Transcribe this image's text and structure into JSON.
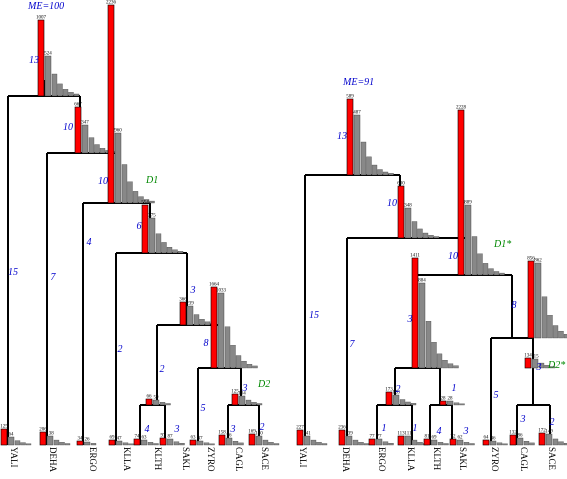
{
  "left_tree": {
    "me_label": "ME=100",
    "taxa": [
      "YALI",
      "DEHA",
      "ERGO",
      "KLLA",
      "KLTH",
      "SAKL",
      "ZYRO",
      "CAGL",
      "SACE"
    ],
    "branch_labels": {
      "root": "13",
      "yali": "15",
      "n1": "10",
      "deha": "7",
      "n2": "10",
      "ergo": "4",
      "n3": "6",
      "klla": "2",
      "n4": "3",
      "n5": "2",
      "kl_kt": "4",
      "sakl_leaf": "3",
      "n6": "8",
      "zyro": "5",
      "n7": "3",
      "cagl_leaf": "3",
      "sace_leaf": "2"
    },
    "node_tags": {
      "d1": "D1",
      "d2": "D2"
    },
    "histograms": {
      "root": {
        "red": "1007",
        "gray": "524"
      },
      "n1": {
        "red": "667",
        "gray": "347"
      },
      "n2": {
        "red": "2236",
        "gray": "960"
      },
      "n3": {
        "red": "554",
        "gray": "375"
      },
      "n4": {
        "red": "366",
        "gray": "239"
      },
      "n6": {
        "red": "1664",
        "gray": "1033"
      },
      "n7": {
        "red": "125",
        "gray": "104"
      },
      "n8": {
        "red": "66",
        "gray": "59"
      },
      "yali": {
        "red": "125",
        "gray": "64"
      },
      "deha": {
        "red": "206",
        "gray": "138"
      },
      "ergo": {
        "red": "34",
        "gray": "26"
      },
      "klla": {
        "red": "69",
        "gray": "47"
      },
      "klth": {
        "red": "74",
        "gray": "63"
      },
      "sakl": {
        "red": "97",
        "gray": "87"
      },
      "zyro": {
        "red": "63",
        "gray": "47"
      },
      "cagl": {
        "red": "158",
        "gray": "96"
      },
      "sace": {
        "red": "169",
        "gray": "140"
      }
    }
  },
  "right_tree": {
    "me_label": "ME=91",
    "taxa": [
      "YALI",
      "DEHA",
      "ERGO",
      "KLLA",
      "KLTH",
      "SAKL",
      "ZYRO",
      "CAGL",
      "SACE"
    ],
    "branch_labels": {
      "root": "13",
      "yali": "15",
      "n1": "10",
      "deha": "7",
      "n2": "10",
      "n3": "3",
      "n4": "8",
      "ergo_b": "2",
      "ergo_leaf": "1",
      "klla_leaf": "1",
      "n5": "1",
      "klth_leaf": "4",
      "sakl_leaf": "3",
      "zyro": "5",
      "n6": "3",
      "cagl_leaf": "3",
      "sace_leaf": "2"
    },
    "node_tags": {
      "d1": "D1*",
      "d2": "D2*"
    },
    "histograms": {
      "root": {
        "red": "589",
        "gray": "487"
      },
      "n1": {
        "red": "600",
        "gray": "348"
      },
      "n2": {
        "red": "2228",
        "gray": "889"
      },
      "n3": {
        "red": "1411",
        "gray": "884"
      },
      "n4": {
        "red": "856",
        "gray": "862"
      },
      "ek": {
        "red": "173",
        "gray": "128"
      },
      "n5": {
        "red": "28",
        "gray": "28"
      },
      "n6": {
        "red": "134",
        "gray": "115"
      },
      "yali": {
        "red": "227",
        "gray": "141"
      },
      "deha": {
        "red": "236",
        "gray": "139"
      },
      "ergo": {
        "red": "77",
        "gray": "77"
      },
      "klla": {
        "red": "113",
        "gray": "111"
      },
      "klth": {
        "red": "81",
        "gray": "69"
      },
      "sakl": {
        "red": "72",
        "gray": "62"
      },
      "zyro": {
        "red": "64",
        "gray": "46"
      },
      "cagl": {
        "red": "132",
        "gray": "86"
      },
      "sace": {
        "red": "172",
        "gray": "149"
      }
    }
  },
  "colors": {
    "red": "#ff0000",
    "gray": "#888888",
    "branch_number": "#0000cc",
    "node_tag": "#008800",
    "me_label": "#0000cc",
    "line": "#000000"
  }
}
